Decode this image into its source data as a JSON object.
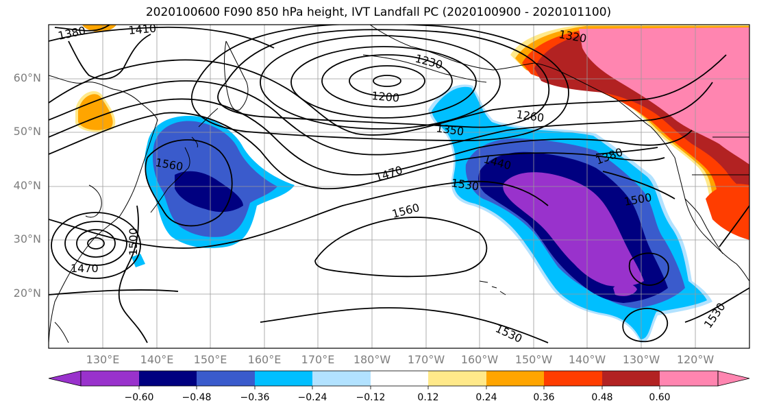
{
  "title": "2020100600 F090 850 hPa height, IVT Landfall PC (2020100900 - 2020101100)",
  "lat_labels": [
    "60°N",
    "50°N",
    "40°N",
    "30°N",
    "20°N"
  ],
  "lon_labels": [
    "130°E",
    "140°E",
    "150°E",
    "160°E",
    "170°E",
    "180°W",
    "170°W",
    "160°W",
    "150°W",
    "140°W",
    "130°W",
    "120°W"
  ],
  "contour_labels": [
    "1380",
    "1410",
    "1230",
    "1320",
    "1200",
    "1260",
    "1350",
    "1380",
    "1560",
    "1470",
    "1440",
    "1530",
    "1500",
    "1560",
    "1500",
    "1470",
    "1530",
    "1530"
  ],
  "colorbar": {
    "ticks": [
      "−0.60",
      "−0.48",
      "−0.36",
      "−0.24",
      "−0.12",
      "0.12",
      "0.24",
      "0.36",
      "0.48",
      "0.60"
    ],
    "colors": [
      "#9932cc",
      "#000080",
      "#3a5bcc",
      "#00bfff",
      "#b2e2ff",
      "#ffffff",
      "#ffe98a",
      "#ffa500",
      "#ff3d00",
      "#b22222",
      "#ff85b0"
    ]
  },
  "shading_colors": {
    "purple": "#9932cc",
    "navy": "#000080",
    "blue": "#3a5bcc",
    "cyan": "#00bfff",
    "orange": "#ffa500",
    "redorange": "#ff3d00",
    "darkred": "#b22222",
    "pink": "#ff85b0",
    "yellow": "#ffe98a"
  }
}
